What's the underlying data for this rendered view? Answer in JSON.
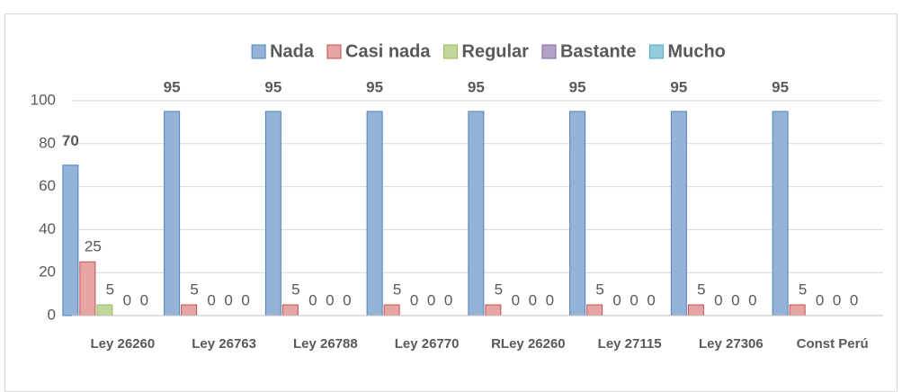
{
  "chart_data": {
    "type": "bar",
    "categories": [
      "Ley 26260",
      "Ley 26763",
      "Ley 26788",
      "Ley 26770",
      "RLey 26260",
      "Ley 27115",
      "Ley 27306",
      "Const Perú"
    ],
    "series": [
      {
        "name": "Nada",
        "color": "#95b3d7",
        "edge_color": "#4f81bd",
        "values": [
          70,
          95,
          95,
          95,
          95,
          95,
          95,
          95
        ]
      },
      {
        "name": "Casi nada",
        "color": "#e6a5a4",
        "edge_color": "#c0504d",
        "values": [
          25,
          5,
          5,
          5,
          5,
          5,
          5,
          5
        ]
      },
      {
        "name": "Regular",
        "color": "#c3d69b",
        "edge_color": "#9bbb59",
        "values": [
          5,
          0,
          0,
          0,
          0,
          0,
          0,
          0
        ]
      },
      {
        "name": "Bastante",
        "color": "#b3a2c7",
        "edge_color": "#8064a2",
        "values": [
          0,
          0,
          0,
          0,
          0,
          0,
          0,
          0
        ]
      },
      {
        "name": "Mucho",
        "color": "#93cddd",
        "edge_color": "#4bacc6",
        "values": [
          0,
          0,
          0,
          0,
          0,
          0,
          0,
          0
        ]
      }
    ],
    "ylim": [
      0,
      100
    ],
    "yticks": [
      0,
      20,
      40,
      60,
      80,
      100
    ],
    "grid": true,
    "legend": "top"
  }
}
